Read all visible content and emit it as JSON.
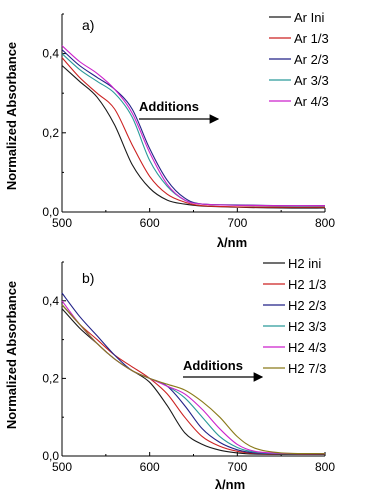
{
  "chart_data": [
    {
      "type": "line",
      "panel_label": "a)",
      "xlabel": "λ/nm",
      "ylabel": "Normalized Absorbance",
      "xlim": [
        500,
        800
      ],
      "ylim": [
        0,
        0.5
      ],
      "xticks": [
        "500",
        "600",
        "700",
        "800"
      ],
      "yticks": [
        "0,0",
        "0,2",
        "0,4"
      ],
      "legend_placement": "top-right",
      "annotation": "Additions",
      "series": [
        {
          "name": "Ar Ini",
          "color": "#1a1a1a",
          "x": [
            500,
            520,
            540,
            560,
            580,
            600,
            620,
            640,
            660,
            700,
            750,
            800
          ],
          "y": [
            0.37,
            0.33,
            0.29,
            0.22,
            0.12,
            0.06,
            0.03,
            0.02,
            0.015,
            0.012,
            0.01,
            0.01
          ]
        },
        {
          "name": "Ar 1/3",
          "color": "#cc2222",
          "x": [
            500,
            520,
            540,
            560,
            580,
            600,
            620,
            640,
            660,
            700,
            750,
            800
          ],
          "y": [
            0.39,
            0.34,
            0.3,
            0.26,
            0.17,
            0.09,
            0.045,
            0.025,
            0.016,
            0.013,
            0.012,
            0.012
          ]
        },
        {
          "name": "Ar 2/3",
          "color": "#222288",
          "x": [
            500,
            520,
            540,
            560,
            580,
            600,
            620,
            640,
            660,
            700,
            750,
            800
          ],
          "y": [
            0.41,
            0.37,
            0.34,
            0.31,
            0.26,
            0.16,
            0.08,
            0.035,
            0.02,
            0.018,
            0.016,
            0.016
          ]
        },
        {
          "name": "Ar 3/3",
          "color": "#2a9a9a",
          "x": [
            500,
            520,
            540,
            560,
            580,
            600,
            620,
            640,
            660,
            700,
            750,
            800
          ],
          "y": [
            0.4,
            0.36,
            0.33,
            0.3,
            0.24,
            0.13,
            0.065,
            0.03,
            0.02,
            0.017,
            0.015,
            0.015
          ]
        },
        {
          "name": "Ar 4/3",
          "color": "#cc22cc",
          "x": [
            500,
            520,
            540,
            560,
            580,
            600,
            620,
            640,
            660,
            700,
            750,
            800
          ],
          "y": [
            0.42,
            0.38,
            0.35,
            0.31,
            0.25,
            0.15,
            0.07,
            0.03,
            0.02,
            0.017,
            0.016,
            0.016
          ]
        }
      ]
    },
    {
      "type": "line",
      "panel_label": "b)",
      "xlabel": "λ/nm",
      "ylabel": "Normalized Absorbance",
      "xlim": [
        500,
        800
      ],
      "ylim": [
        0,
        0.5
      ],
      "xticks": [
        "500",
        "600",
        "700",
        "800"
      ],
      "yticks": [
        "0,0",
        "0,2",
        "0,4"
      ],
      "legend_placement": "top-right",
      "annotation": "Additions",
      "series": [
        {
          "name": "H2 ini",
          "color": "#1a1a1a",
          "x": [
            500,
            520,
            540,
            560,
            580,
            600,
            620,
            640,
            660,
            680,
            700,
            720,
            750,
            800
          ],
          "y": [
            0.38,
            0.33,
            0.29,
            0.25,
            0.22,
            0.19,
            0.13,
            0.06,
            0.03,
            0.015,
            0.008,
            0.005,
            0.004,
            0.004
          ]
        },
        {
          "name": "H2 1/3",
          "color": "#cc2222",
          "x": [
            500,
            520,
            540,
            560,
            580,
            600,
            620,
            640,
            660,
            680,
            700,
            720,
            750,
            800
          ],
          "y": [
            0.39,
            0.34,
            0.3,
            0.26,
            0.23,
            0.2,
            0.16,
            0.1,
            0.05,
            0.025,
            0.012,
            0.007,
            0.005,
            0.005
          ]
        },
        {
          "name": "H2 2/3",
          "color": "#222288",
          "x": [
            500,
            520,
            540,
            560,
            580,
            600,
            620,
            640,
            660,
            680,
            700,
            720,
            750,
            800
          ],
          "y": [
            0.42,
            0.36,
            0.31,
            0.26,
            0.22,
            0.2,
            0.18,
            0.13,
            0.07,
            0.035,
            0.016,
            0.008,
            0.006,
            0.006
          ]
        },
        {
          "name": "H2 3/3",
          "color": "#2a9a9a",
          "x": [
            500,
            520,
            540,
            560,
            580,
            600,
            620,
            640,
            660,
            680,
            700,
            720,
            750,
            800
          ],
          "y": [
            0.39,
            0.34,
            0.29,
            0.25,
            0.22,
            0.2,
            0.18,
            0.15,
            0.1,
            0.05,
            0.022,
            0.01,
            0.006,
            0.006
          ]
        },
        {
          "name": "H2 4/3",
          "color": "#cc22cc",
          "x": [
            500,
            520,
            540,
            560,
            580,
            600,
            620,
            640,
            660,
            680,
            700,
            720,
            750,
            800
          ],
          "y": [
            0.4,
            0.34,
            0.29,
            0.25,
            0.22,
            0.2,
            0.18,
            0.16,
            0.12,
            0.07,
            0.03,
            0.012,
            0.007,
            0.006
          ]
        },
        {
          "name": "H2 7/3",
          "color": "#8a7a1a",
          "x": [
            500,
            520,
            540,
            560,
            580,
            600,
            620,
            640,
            660,
            680,
            700,
            720,
            750,
            800
          ],
          "y": [
            0.39,
            0.34,
            0.29,
            0.25,
            0.22,
            0.2,
            0.185,
            0.17,
            0.14,
            0.1,
            0.05,
            0.02,
            0.008,
            0.006
          ]
        }
      ]
    }
  ]
}
